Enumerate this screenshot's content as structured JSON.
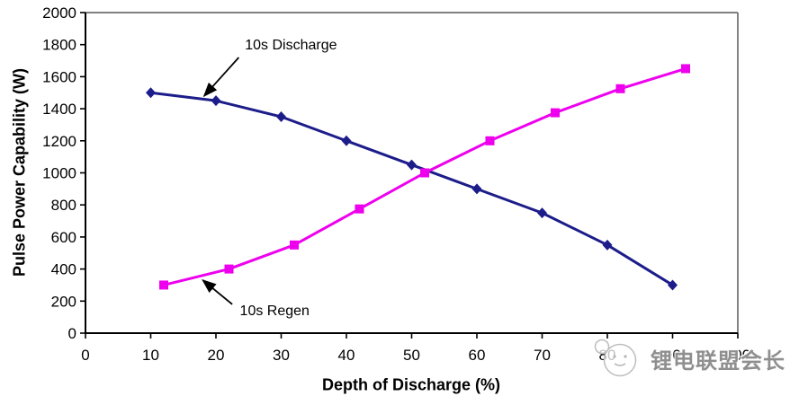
{
  "chart_data": {
    "type": "line",
    "title": "",
    "xlabel": "Depth of Discharge (%)",
    "ylabel": "Pulse Power Capability (W)",
    "xlim": [
      0,
      100
    ],
    "ylim": [
      0,
      2000
    ],
    "x_ticks": [
      0,
      10,
      20,
      30,
      40,
      50,
      60,
      70,
      80,
      90,
      100
    ],
    "y_ticks": [
      0,
      200,
      400,
      600,
      800,
      1000,
      1200,
      1400,
      1600,
      1800,
      2000
    ],
    "grid": false,
    "legend_position": "none (series labeled by in-plot arrow annotations)",
    "colors": {
      "axis": "#000000",
      "frame": "#6e6e6e",
      "text": "#000000",
      "annotation_arrow": "#000000"
    },
    "series": [
      {
        "name": "10s Discharge",
        "color": "#1C1C8A",
        "marker": "diamond",
        "x": [
          10,
          20,
          30,
          40,
          50,
          60,
          70,
          80,
          90
        ],
        "values": [
          1500,
          1450,
          1350,
          1200,
          1050,
          900,
          750,
          550,
          300
        ]
      },
      {
        "name": "10s Regen",
        "color": "#EE00EE",
        "marker": "square",
        "x": [
          12,
          22,
          32,
          42,
          52,
          62,
          72,
          82,
          92
        ],
        "values": [
          300,
          400,
          550,
          775,
          1000,
          1200,
          1375,
          1525,
          1650
        ]
      }
    ],
    "annotations": [
      {
        "text": "10s Discharge",
        "text_at": {
          "dod": 31.5,
          "watts": 1790
        },
        "arrow_from": {
          "dod": 23.5,
          "watts": 1720
        },
        "arrow_to": {
          "dod": 18.2,
          "watts": 1480
        }
      },
      {
        "text": "10s Regen",
        "text_at": {
          "dod": 29.0,
          "watts": 135
        },
        "arrow_from": {
          "dod": 22.5,
          "watts": 180
        },
        "arrow_to": {
          "dod": 18.0,
          "watts": 330
        }
      }
    ]
  },
  "watermark": {
    "text": "锂电联盟会长",
    "color": "#8f8f8f",
    "logo": "cartoon-face-logo"
  }
}
